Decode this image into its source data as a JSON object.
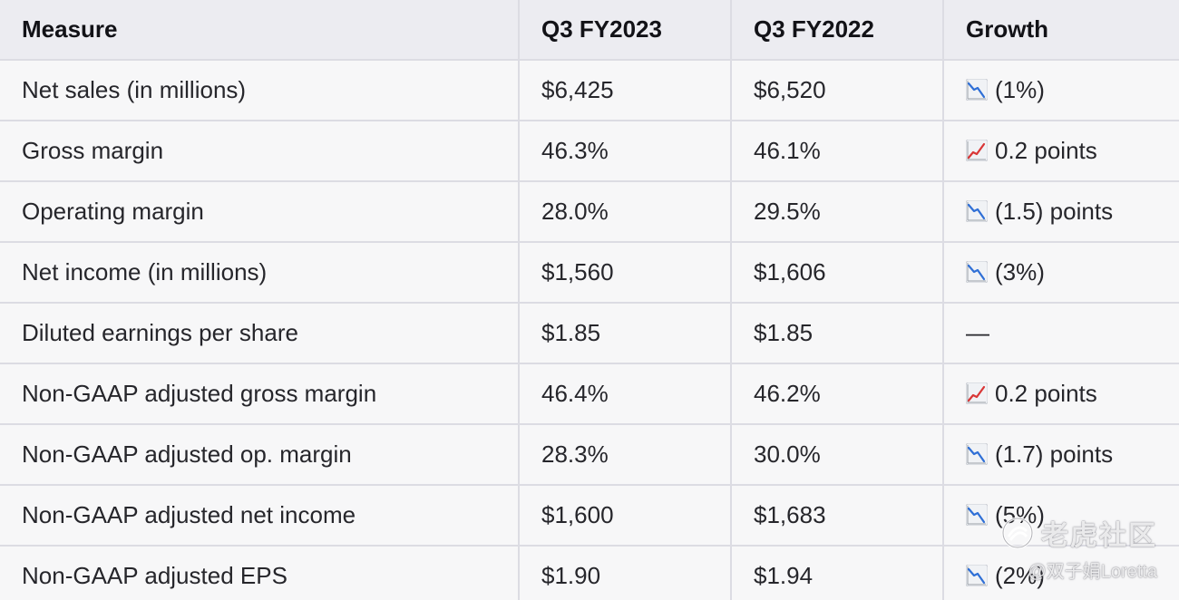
{
  "table": {
    "headers": [
      "Measure",
      "Q3 FY2023",
      "Q3 FY2022",
      "Growth"
    ],
    "rows": [
      {
        "measure": "Net sales (in millions)",
        "fy2023": "$6,425",
        "fy2022": "$6,520",
        "trend": "down",
        "growth": "(1%)"
      },
      {
        "measure": "Gross margin",
        "fy2023": "46.3%",
        "fy2022": "46.1%",
        "trend": "up",
        "growth": "0.2 points"
      },
      {
        "measure": "Operating margin",
        "fy2023": "28.0%",
        "fy2022": "29.5%",
        "trend": "down",
        "growth": "(1.5) points"
      },
      {
        "measure": "Net income (in millions)",
        "fy2023": "$1,560",
        "fy2022": "$1,606",
        "trend": "down",
        "growth": "(3%)"
      },
      {
        "measure": "Diluted earnings per share",
        "fy2023": "$1.85",
        "fy2022": "$1.85",
        "trend": "none",
        "growth": "—"
      },
      {
        "measure": "Non-GAAP adjusted gross margin",
        "fy2023": "46.4%",
        "fy2022": "46.2%",
        "trend": "up",
        "growth": "0.2 points"
      },
      {
        "measure": "Non-GAAP adjusted op. margin",
        "fy2023": "28.3%",
        "fy2022": "30.0%",
        "trend": "down",
        "growth": "(1.7) points"
      },
      {
        "measure": "Non-GAAP adjusted net income",
        "fy2023": "$1,600",
        "fy2022": "$1,683",
        "trend": "down",
        "growth": "(5%)"
      },
      {
        "measure": "Non-GAAP adjusted EPS",
        "fy2023": "$1.90",
        "fy2022": "$1.94",
        "trend": "down",
        "growth": "(2%)"
      }
    ]
  },
  "icons": {
    "down": "chart-decreasing-icon",
    "up": "chart-increasing-icon"
  },
  "colors": {
    "down_trend": "#2f6fd6",
    "up_trend": "#d93636"
  },
  "watermark": {
    "brand": "老虎社区",
    "user": "@双子娟Loretta"
  }
}
